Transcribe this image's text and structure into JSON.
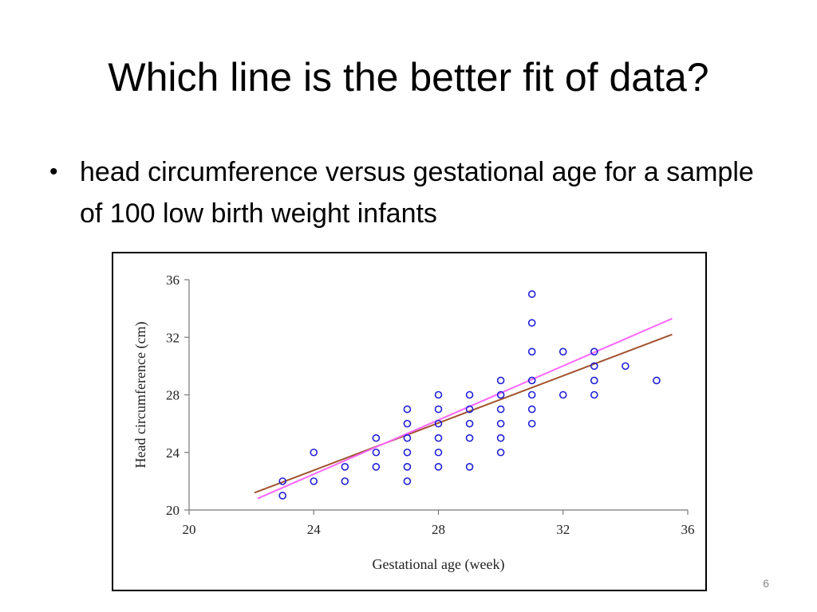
{
  "slide": {
    "title": "Which line is the better fit of data?",
    "bullets": [
      "head circumference versus gestational age for a sample of 100 low birth weight infants"
    ],
    "page_number": "6"
  },
  "chart_data": {
    "type": "scatter",
    "title": "",
    "xlabel": "Gestational age (week)",
    "ylabel": "Head circumference (cm)",
    "xlim": [
      20,
      36
    ],
    "ylim": [
      20,
      36
    ],
    "x_ticks": [
      20,
      24,
      28,
      32,
      36
    ],
    "y_ticks": [
      20,
      24,
      28,
      32,
      36
    ],
    "grid": false,
    "legend": "none",
    "point_color": "#1f1fd6",
    "points": [
      {
        "x": 23,
        "y": 22
      },
      {
        "x": 23,
        "y": 21
      },
      {
        "x": 24,
        "y": 24
      },
      {
        "x": 24,
        "y": 22
      },
      {
        "x": 25,
        "y": 23
      },
      {
        "x": 25,
        "y": 22
      },
      {
        "x": 26,
        "y": 25
      },
      {
        "x": 26,
        "y": 24
      },
      {
        "x": 26,
        "y": 23
      },
      {
        "x": 27,
        "y": 27
      },
      {
        "x": 27,
        "y": 26
      },
      {
        "x": 27,
        "y": 25
      },
      {
        "x": 27,
        "y": 24
      },
      {
        "x": 27,
        "y": 23
      },
      {
        "x": 27,
        "y": 22
      },
      {
        "x": 28,
        "y": 28
      },
      {
        "x": 28,
        "y": 27
      },
      {
        "x": 28,
        "y": 26
      },
      {
        "x": 28,
        "y": 25
      },
      {
        "x": 28,
        "y": 24
      },
      {
        "x": 28,
        "y": 23
      },
      {
        "x": 29,
        "y": 28
      },
      {
        "x": 29,
        "y": 27
      },
      {
        "x": 29,
        "y": 26
      },
      {
        "x": 29,
        "y": 25
      },
      {
        "x": 29,
        "y": 23
      },
      {
        "x": 30,
        "y": 29
      },
      {
        "x": 30,
        "y": 28
      },
      {
        "x": 30,
        "y": 27
      },
      {
        "x": 30,
        "y": 26
      },
      {
        "x": 30,
        "y": 25
      },
      {
        "x": 30,
        "y": 24
      },
      {
        "x": 31,
        "y": 35
      },
      {
        "x": 31,
        "y": 33
      },
      {
        "x": 31,
        "y": 31
      },
      {
        "x": 31,
        "y": 29
      },
      {
        "x": 31,
        "y": 28
      },
      {
        "x": 31,
        "y": 27
      },
      {
        "x": 31,
        "y": 26
      },
      {
        "x": 32,
        "y": 31
      },
      {
        "x": 32,
        "y": 28
      },
      {
        "x": 33,
        "y": 31
      },
      {
        "x": 33,
        "y": 30
      },
      {
        "x": 33,
        "y": 29
      },
      {
        "x": 33,
        "y": 28
      },
      {
        "x": 34,
        "y": 30
      },
      {
        "x": 35,
        "y": 29
      }
    ],
    "lines": [
      {
        "color": "#a0522d",
        "x": [
          22.1,
          35.5
        ],
        "y": [
          21.2,
          32.2
        ]
      },
      {
        "color": "#ff66ff",
        "x": [
          22.2,
          35.5
        ],
        "y": [
          20.8,
          33.3
        ]
      }
    ]
  }
}
